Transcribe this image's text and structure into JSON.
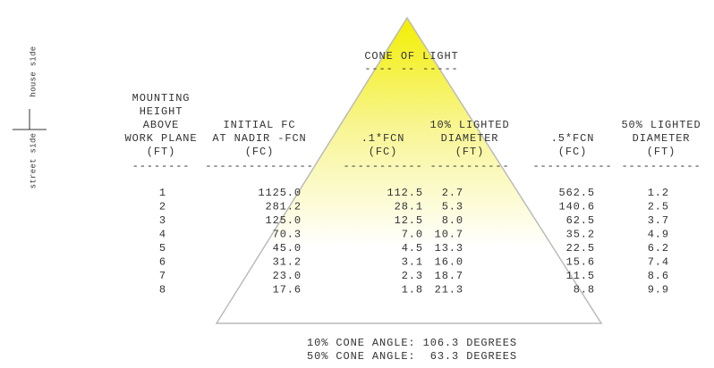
{
  "side_labels": [
    "house side",
    "street side"
  ],
  "title": "CONE OF LIGHT",
  "title_underline": "---- -- -----",
  "table": {
    "columns": [
      {
        "header": [
          "MOUNTING",
          "HEIGHT",
          "ABOVE",
          "WORK PLANE",
          "(FT)"
        ],
        "rule": "--------"
      },
      {
        "header": [
          "INITIAL FC",
          "AT NADIR -FCN",
          "(FC)"
        ],
        "rule": "---------------"
      },
      {
        "header": [
          ".1*FCN",
          "(FC)"
        ],
        "rule": "-----------"
      },
      {
        "header": [
          "10% LIGHTED",
          "DIAMETER",
          "(FT)"
        ],
        "rule": "-----------"
      },
      {
        "header": [
          ".5*FCN",
          "(FC)"
        ],
        "rule": "-----------"
      },
      {
        "header": [
          "50% LIGHTED",
          "DIAMETER",
          "(FT)"
        ],
        "rule": "-----------"
      }
    ],
    "rows": [
      [
        "1",
        "1125.0",
        "112.5",
        "2.7",
        "562.5",
        "1.2"
      ],
      [
        "2",
        "281.2",
        "28.1",
        "5.3",
        "140.6",
        "2.5"
      ],
      [
        "3",
        "125.0",
        "12.5",
        "8.0",
        "62.5",
        "3.7"
      ],
      [
        "4",
        "70.3",
        "7.0",
        "10.7",
        "35.2",
        "4.9"
      ],
      [
        "5",
        "45.0",
        "4.5",
        "13.3",
        "22.5",
        "6.2"
      ],
      [
        "6",
        "31.2",
        "3.1",
        "16.0",
        "15.6",
        "7.4"
      ],
      [
        "7",
        "23.0",
        "2.3",
        "18.7",
        "11.5",
        "8.6"
      ],
      [
        "8",
        "17.6",
        "1.8",
        "21.3",
        "8.8",
        "9.9"
      ]
    ]
  },
  "footer": [
    "10% CONE ANGLE: 106.3 DEGREES",
    "50% CONE ANGLE:  63.3 DEGREES"
  ]
}
